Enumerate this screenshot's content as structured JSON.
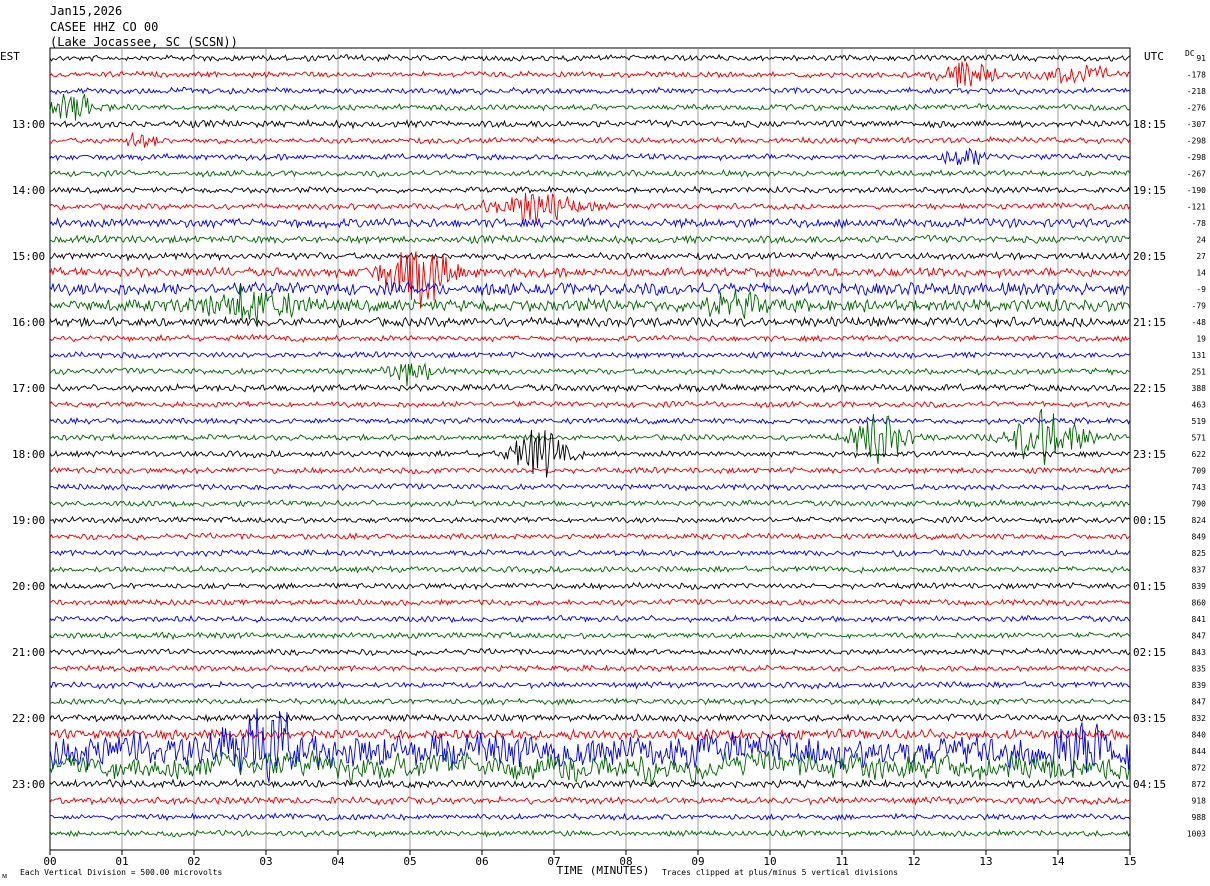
{
  "header": {
    "date": "Jan15,2026",
    "station": "CASEE HHZ CO 00",
    "location": "(Lake Jocassee, SC (SCSN))"
  },
  "footer": {
    "division_note": "Each Vertical Division =  500.00 microvolts",
    "clip_note": "Traces clipped at plus/minus 5 vertical divisions",
    "corner_mark": "ᴍ"
  },
  "colors": {
    "trace_cycle": [
      "#000000",
      "#e00000",
      "#0000e0",
      "#006400"
    ],
    "grid": "#888888"
  },
  "chart_data": {
    "type": "line",
    "title": "CASEE HHZ CO 00",
    "xlabel": "TIME (MINUTES)",
    "left_axis_label": "EST",
    "right_axis_label": "UTC",
    "dc_label": "DC",
    "x_ticks": [
      "00",
      "01",
      "02",
      "03",
      "04",
      "05",
      "06",
      "07",
      "08",
      "09",
      "10",
      "11",
      "12",
      "13",
      "14",
      "15"
    ],
    "xlim": [
      0,
      15
    ],
    "rows": 48,
    "left_hour_labels": [
      {
        "row": 4,
        "label": "13:00"
      },
      {
        "row": 8,
        "label": "14:00"
      },
      {
        "row": 12,
        "label": "15:00"
      },
      {
        "row": 16,
        "label": "16:00"
      },
      {
        "row": 20,
        "label": "17:00"
      },
      {
        "row": 24,
        "label": "18:00"
      },
      {
        "row": 28,
        "label": "19:00"
      },
      {
        "row": 32,
        "label": "20:00"
      },
      {
        "row": 36,
        "label": "21:00"
      },
      {
        "row": 40,
        "label": "22:00"
      },
      {
        "row": 44,
        "label": "23:00"
      }
    ],
    "right_hour_labels": [
      {
        "row": 4,
        "label": "18:15"
      },
      {
        "row": 8,
        "label": "19:15"
      },
      {
        "row": 12,
        "label": "20:15"
      },
      {
        "row": 16,
        "label": "21:15"
      },
      {
        "row": 20,
        "label": "22:15"
      },
      {
        "row": 24,
        "label": "23:15"
      },
      {
        "row": 28,
        "label": "00:15"
      },
      {
        "row": 32,
        "label": "01:15"
      },
      {
        "row": 36,
        "label": "02:15"
      },
      {
        "row": 40,
        "label": "03:15"
      },
      {
        "row": 44,
        "label": "04:15"
      }
    ],
    "dc_offsets": [
      "91",
      "-178",
      "-218",
      "-276",
      "-307",
      "-298",
      "-298",
      "-267",
      "-190",
      "-121",
      "-78",
      "24",
      "27",
      "14",
      "-9",
      "-79",
      "-48",
      "19",
      "131",
      "251",
      "388",
      "463",
      "519",
      "571",
      "622",
      "709",
      "743",
      "790",
      "824",
      "849",
      "825",
      "837",
      "839",
      "860",
      "841",
      "847",
      "843",
      "835",
      "839",
      "847",
      "832",
      "840",
      "844",
      "872",
      "872",
      "918",
      "988",
      "1003"
    ],
    "row_noise": [
      1,
      1,
      1,
      1,
      1.2,
      1,
      1,
      1,
      1,
      1,
      1.6,
      1.3,
      1.2,
      1.6,
      2.2,
      2.2,
      1.6,
      1,
      1,
      1,
      1.2,
      1,
      1,
      1,
      1,
      1,
      1,
      1,
      1,
      1,
      1,
      1,
      1,
      1,
      1,
      1,
      1,
      1,
      1,
      1,
      1.2,
      1.8,
      5,
      4,
      1.3,
      1.2,
      1,
      1
    ],
    "events": [
      {
        "row": 1,
        "t": 12.7,
        "amp": 2.0,
        "dur": 0.35
      },
      {
        "row": 1,
        "t": 14.3,
        "amp": 1.0,
        "dur": 0.5
      },
      {
        "row": 3,
        "t": 0.35,
        "amp": 2.0,
        "dur": 0.35
      },
      {
        "row": 5,
        "t": 1.3,
        "amp": 1.2,
        "dur": 0.2
      },
      {
        "row": 6,
        "t": 12.7,
        "amp": 1.2,
        "dur": 0.3
      },
      {
        "row": 9,
        "t": 6.7,
        "amp": 2.0,
        "dur": 0.6
      },
      {
        "row": 13,
        "t": 5.1,
        "amp": 4.0,
        "dur": 0.45
      },
      {
        "row": 15,
        "t": 2.8,
        "amp": 2.0,
        "dur": 0.6
      },
      {
        "row": 15,
        "t": 9.5,
        "amp": 1.5,
        "dur": 0.4
      },
      {
        "row": 19,
        "t": 5.0,
        "amp": 1.5,
        "dur": 0.3
      },
      {
        "row": 23,
        "t": 11.5,
        "amp": 3.5,
        "dur": 0.35
      },
      {
        "row": 23,
        "t": 13.85,
        "amp": 4.0,
        "dur": 0.45
      },
      {
        "row": 24,
        "t": 6.8,
        "amp": 3.5,
        "dur": 0.35
      },
      {
        "row": 42,
        "t": 2.95,
        "amp": 4.5,
        "dur": 0.4
      },
      {
        "row": 42,
        "t": 14.5,
        "amp": 2.0,
        "dur": 0.6
      }
    ]
  }
}
